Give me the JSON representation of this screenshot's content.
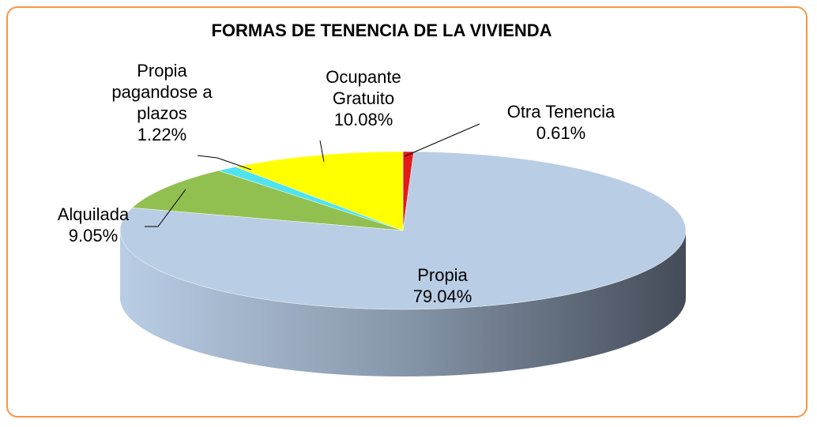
{
  "chart_data": {
    "type": "pie",
    "title": "FORMAS DE TENENCIA DE LA VIVIENDA",
    "categories": [
      "Otra Tenencia",
      "Propia",
      "Alquilada",
      "Propia pagandose a plazos",
      "Ocupante Gratuito"
    ],
    "values": [
      0.61,
      79.04,
      9.05,
      1.22,
      10.08
    ],
    "value_labels": [
      "0.61%",
      "79.04%",
      "9.05%",
      "1.22%",
      "10.08%"
    ],
    "colors": [
      "#e31a1a",
      "#b9cde5",
      "#92c050",
      "#4fe3f0",
      "#ffff00"
    ]
  }
}
